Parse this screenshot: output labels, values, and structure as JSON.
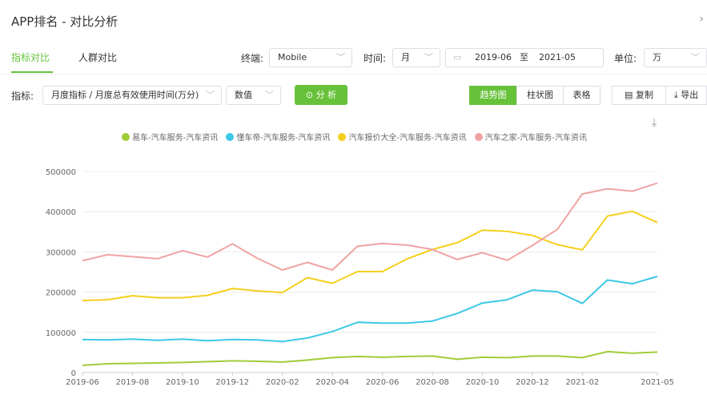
{
  "header": {
    "title": "APP排名 - 对比分析",
    "collapse_icon": "chevron-right-icon"
  },
  "tabs": [
    {
      "label": "指标对比",
      "active": true
    },
    {
      "label": "人群对比",
      "active": false
    }
  ],
  "filters": {
    "terminal_label": "终端:",
    "terminal_value": "Mobile",
    "time_label": "时间:",
    "time_granularity": "月",
    "date_start": "2019-06",
    "date_sep": "至",
    "date_end": "2021-05",
    "unit_label": "单位:",
    "unit_value": "万"
  },
  "metric": {
    "label": "指标:",
    "value": "月度指标 / 月度总有效使用时间(万分)",
    "mode": "数值",
    "analyze_button": "分 析"
  },
  "views": {
    "trend": "趋势图",
    "bar": "柱状图",
    "table": "表格",
    "active": "trend"
  },
  "actions": {
    "copy": "复制",
    "export": "导出",
    "download_icon": "download-icon"
  },
  "colors": {
    "accent": "#67c23a"
  },
  "chart_data": {
    "type": "line",
    "x": [
      "2019-06",
      "2019-07",
      "2019-08",
      "2019-09",
      "2019-10",
      "2019-11",
      "2019-12",
      "2020-01",
      "2020-02",
      "2020-03",
      "2020-04",
      "2020-05",
      "2020-06",
      "2020-07",
      "2020-08",
      "2020-09",
      "2020-10",
      "2020-11",
      "2020-12",
      "2021-01",
      "2021-02",
      "2021-03",
      "2021-04",
      "2021-05"
    ],
    "x_tick_labels": [
      "2019-06",
      "2019-08",
      "2019-10",
      "2019-12",
      "2020-02",
      "2020-04",
      "2020-06",
      "2020-08",
      "2020-10",
      "2020-12",
      "2021-02",
      "2021-05"
    ],
    "y_tick_labels": [
      "0",
      "100000",
      "200000",
      "300000",
      "400000",
      "500000"
    ],
    "ylim": [
      0,
      500000
    ],
    "grid": true,
    "legend_position": "top",
    "series": [
      {
        "name": "易车-汽车服务-汽车资讯",
        "color": "#a0cc3a",
        "values": [
          18000,
          22000,
          23000,
          24000,
          25000,
          27000,
          29000,
          28000,
          26000,
          31000,
          37000,
          40000,
          38000,
          40000,
          41000,
          33000,
          38000,
          37000,
          41000,
          41000,
          37000,
          52000,
          48000,
          51000
        ]
      },
      {
        "name": "懂车帝-汽车服务-汽车资讯",
        "color": "#3cc8e6",
        "values": [
          82000,
          81000,
          83000,
          80000,
          83000,
          79000,
          82000,
          81000,
          77000,
          86000,
          102000,
          125000,
          123000,
          123000,
          128000,
          147000,
          173000,
          181000,
          205000,
          201000,
          172000,
          230000,
          221000,
          239000
        ]
      },
      {
        "name": "汽车报价大全-汽车服务-汽车资讯",
        "color": "#f5cf1e",
        "values": [
          179000,
          181000,
          191000,
          186000,
          186000,
          192000,
          209000,
          203000,
          199000,
          236000,
          222000,
          251000,
          251000,
          283000,
          306000,
          323000,
          354000,
          351000,
          341000,
          318000,
          305000,
          389000,
          401000,
          373000
        ]
      },
      {
        "name": "汽车之家-汽车服务-汽车资讯",
        "color": "#f0a3a3",
        "values": [
          278000,
          293000,
          288000,
          283000,
          303000,
          287000,
          320000,
          284000,
          255000,
          274000,
          255000,
          314000,
          321000,
          317000,
          306000,
          281000,
          298000,
          279000,
          316000,
          356000,
          444000,
          457000,
          451000,
          471000
        ]
      }
    ]
  }
}
